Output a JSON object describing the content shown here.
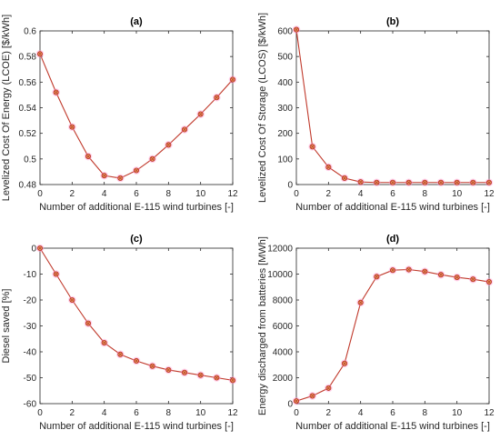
{
  "colors": {
    "line": "#c0392b",
    "marker_fill": "#e0a060",
    "marker_glow": "#ff9ad0"
  },
  "chart_data": [
    {
      "type": "line",
      "title": "(a)",
      "xlabel": "Number of additional E-115 wind turbines [-]",
      "ylabel": "Levelized Cost Of Energy (LCOE) [$/kWh]",
      "xlim": [
        0,
        12
      ],
      "ylim": [
        0.48,
        0.6
      ],
      "xticks": [
        0,
        2,
        4,
        6,
        8,
        10,
        12
      ],
      "yticks": [
        0.48,
        0.5,
        0.52,
        0.54,
        0.56,
        0.58,
        0.6
      ],
      "ytick_labels": [
        "0.48",
        "0.5",
        "0.52",
        "0.54",
        "0.56",
        "0.58",
        "0.6"
      ],
      "x": [
        0,
        1,
        2,
        3,
        4,
        5,
        6,
        7,
        8,
        9,
        10,
        11,
        12
      ],
      "values": [
        0.582,
        0.552,
        0.525,
        0.502,
        0.487,
        0.485,
        0.491,
        0.5,
        0.511,
        0.523,
        0.535,
        0.548,
        0.562
      ]
    },
    {
      "type": "line",
      "title": "(b)",
      "xlabel": "Number of additional E-115 wind turbines [-]",
      "ylabel": "Levelized Cost Of Storage (LCOS) [$/kWh]",
      "xlim": [
        0,
        12
      ],
      "ylim": [
        0,
        600
      ],
      "xticks": [
        0,
        2,
        4,
        6,
        8,
        10,
        12
      ],
      "yticks": [
        0,
        100,
        200,
        300,
        400,
        500,
        600
      ],
      "ytick_labels": [
        "0",
        "100",
        "200",
        "300",
        "400",
        "500",
        "600"
      ],
      "x": [
        0,
        1,
        2,
        3,
        4,
        5,
        6,
        7,
        8,
        9,
        10,
        11,
        12
      ],
      "values": [
        605,
        148,
        68,
        25,
        10,
        8,
        8,
        8,
        8,
        8,
        8,
        8,
        8
      ]
    },
    {
      "type": "line",
      "title": "(c)",
      "xlabel": "Number of additional E-115 wind turbines [-]",
      "ylabel": "Diesel saved [%]",
      "xlim": [
        0,
        12
      ],
      "ylim": [
        -60,
        0
      ],
      "xticks": [
        0,
        2,
        4,
        6,
        8,
        10,
        12
      ],
      "yticks": [
        -60,
        -50,
        -40,
        -30,
        -20,
        -10,
        0
      ],
      "ytick_labels": [
        "-60",
        "-50",
        "-40",
        "-30",
        "-20",
        "-10",
        "0"
      ],
      "x": [
        0,
        1,
        2,
        3,
        4,
        5,
        6,
        7,
        8,
        9,
        10,
        11,
        12
      ],
      "values": [
        0,
        -10,
        -20,
        -29,
        -36.5,
        -41,
        -43.5,
        -45.5,
        -47,
        -48,
        -49,
        -50,
        -51
      ]
    },
    {
      "type": "line",
      "title": "(d)",
      "xlabel": "Number of additional E-115 wind turbines [-]",
      "ylabel": "Energy discharged from batteries [MWh]",
      "xlim": [
        0,
        12
      ],
      "ylim": [
        0,
        12000
      ],
      "xticks": [
        0,
        2,
        4,
        6,
        8,
        10,
        12
      ],
      "yticks": [
        0,
        2000,
        4000,
        6000,
        8000,
        10000,
        12000
      ],
      "ytick_labels": [
        "0",
        "2000",
        "4000",
        "6000",
        "8000",
        "10000",
        "12000"
      ],
      "x": [
        0,
        1,
        2,
        3,
        4,
        5,
        6,
        7,
        8,
        9,
        10,
        11,
        12
      ],
      "values": [
        200,
        600,
        1200,
        3100,
        7800,
        9800,
        10300,
        10350,
        10200,
        9950,
        9750,
        9600,
        9400
      ]
    }
  ]
}
